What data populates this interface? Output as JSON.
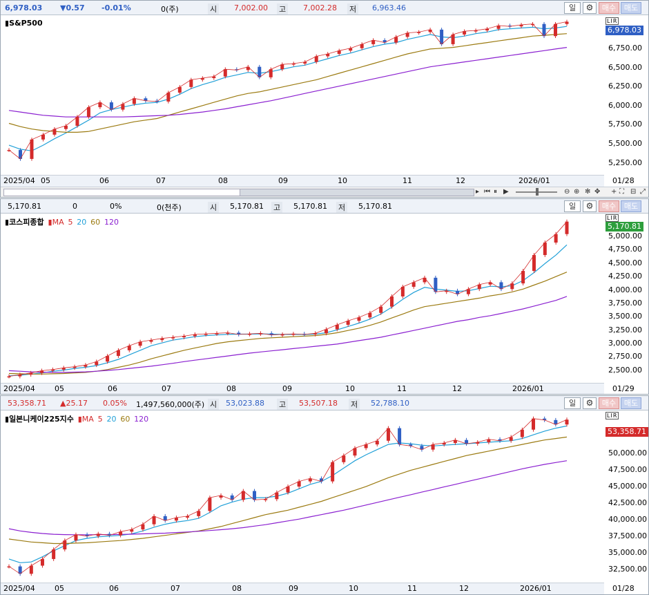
{
  "panels": [
    {
      "header": {
        "price": "6,978.03",
        "change": "▼0.57",
        "rate": "-0.01%",
        "volume": "0(주)",
        "open_label": "시",
        "open": "7,002.00",
        "high_label": "고",
        "high": "7,002.28",
        "low_label": "저",
        "low": "6,963.46"
      },
      "title": "S&P500",
      "ma_labels": [],
      "last_price": "6,978.03",
      "last_price_color": "#2f5fc4",
      "y_ticks": [
        "6,750.00",
        "6,500.00",
        "6,250.00",
        "6,000.00",
        "5,750.00",
        "5,500.00",
        "5,250.00"
      ],
      "x_ticks": [
        "2025/04",
        "05",
        "06",
        "07",
        "08",
        "09",
        "10",
        "11",
        "12",
        "2026/01"
      ],
      "end_date": "01/28",
      "buttons": {
        "period": "일",
        "buy": "매수",
        "sell": "매도"
      },
      "lr_badge": "LIR"
    },
    {
      "header": {
        "price": "5,170.81",
        "change": "0",
        "rate": "0%",
        "volume": "0(천주)",
        "open_label": "시",
        "open": "5,170.81",
        "high_label": "고",
        "high": "5,170.81",
        "low_label": "저",
        "low": "5,170.81"
      },
      "title": "코스피종합",
      "ma_labels": [
        "MA",
        "5",
        "20",
        "60",
        "120"
      ],
      "last_price": "5,170.81",
      "last_price_color": "#2d9e3c",
      "y_ticks": [
        "5,000.00",
        "4,750.00",
        "4,500.00",
        "4,250.00",
        "4,000.00",
        "3,750.00",
        "3,500.00",
        "3,250.00",
        "3,000.00",
        "2,750.00",
        "2,500.00"
      ],
      "x_ticks": [
        "2025/04",
        "05",
        "06",
        "07",
        "08",
        "09",
        "10",
        "11",
        "12",
        "2026/01"
      ],
      "end_date": "01/29",
      "buttons": {
        "period": "일",
        "buy": "매수",
        "sell": "매도"
      },
      "lr_badge": "LIR"
    },
    {
      "header": {
        "price": "53,358.71",
        "change": "▲25.17",
        "rate": "0.05%",
        "volume": "1,497,560,000(주)",
        "open_label": "시",
        "open": "53,023.88",
        "high_label": "고",
        "high": "53,507.18",
        "low_label": "저",
        "low": "52,788.10"
      },
      "title": "일본니케이225지수",
      "ma_labels": [
        "MA",
        "5",
        "20",
        "60",
        "120"
      ],
      "last_price": "53,358.71",
      "last_price_color": "#d42b2b",
      "y_ticks": [
        "50,000.00",
        "47,500.00",
        "45,000.00",
        "42,500.00",
        "40,000.00",
        "37,500.00",
        "35,000.00",
        "32,500.00"
      ],
      "x_ticks": [
        "2025/04",
        "05",
        "06",
        "07",
        "08",
        "09",
        "10",
        "11",
        "12",
        "2026/01"
      ],
      "end_date": "01/28",
      "buttons": {
        "period": "일",
        "buy": "매수",
        "sell": "매도"
      },
      "lr_badge": "LIR"
    }
  ],
  "colors": {
    "up": "#d42b2b",
    "down": "#2f5fc4",
    "ma5": "#d42b2b",
    "ma20": "#20a0d8",
    "ma60": "#9b7a10",
    "ma120": "#8a1fd0"
  },
  "chart_data": [
    {
      "type": "line",
      "title": "S&P500",
      "y_range": [
        5100,
        7050
      ],
      "series": [
        {
          "name": "close",
          "values": [
            5390,
            5280,
            5520,
            5580,
            5650,
            5690,
            5800,
            5920,
            5980,
            5890,
            5960,
            6030,
            6000,
            5990,
            6100,
            6170,
            6260,
            6280,
            6300,
            6390,
            6380,
            6420,
            6290,
            6390,
            6450,
            6460,
            6480,
            6550,
            6580,
            6620,
            6650,
            6700,
            6750,
            6720,
            6790,
            6840,
            6850,
            6880,
            6700,
            6820,
            6860,
            6870,
            6890,
            6930,
            6920,
            6940,
            6950,
            6800,
            6950,
            6978
          ]
        },
        {
          "name": "20",
          "values": [
            5450,
            5400,
            5380,
            5450,
            5530,
            5600,
            5680,
            5760,
            5850,
            5890,
            5920,
            5950,
            5970,
            5980,
            6020,
            6080,
            6150,
            6200,
            6240,
            6290,
            6320,
            6350,
            6340,
            6360,
            6390,
            6420,
            6440,
            6480,
            6520,
            6560,
            6590,
            6630,
            6670,
            6700,
            6720,
            6760,
            6790,
            6820,
            6790,
            6780,
            6800,
            6830,
            6850,
            6880,
            6890,
            6900,
            6910,
            6890,
            6900,
            6920
          ]
        },
        {
          "name": "60",
          "values": [
            5720,
            5680,
            5650,
            5630,
            5620,
            5610,
            5610,
            5620,
            5650,
            5680,
            5710,
            5740,
            5760,
            5780,
            5820,
            5860,
            5900,
            5940,
            5980,
            6020,
            6060,
            6090,
            6110,
            6140,
            6170,
            6200,
            6230,
            6260,
            6300,
            6340,
            6380,
            6420,
            6460,
            6500,
            6540,
            6580,
            6610,
            6640,
            6650,
            6660,
            6680,
            6700,
            6720,
            6740,
            6760,
            6780,
            6800,
            6810,
            6820,
            6830
          ]
        },
        {
          "name": "120",
          "values": [
            5880,
            5860,
            5840,
            5820,
            5810,
            5800,
            5800,
            5800,
            5800,
            5800,
            5800,
            5805,
            5810,
            5815,
            5820,
            5830,
            5845,
            5860,
            5880,
            5900,
            5925,
            5950,
            5975,
            6000,
            6030,
            6060,
            6090,
            6120,
            6150,
            6180,
            6210,
            6240,
            6270,
            6300,
            6330,
            6360,
            6390,
            6420,
            6440,
            6460,
            6480,
            6500,
            6520,
            6540,
            6560,
            6580,
            6600,
            6620,
            6640,
            6660
          ]
        }
      ]
    },
    {
      "type": "line",
      "title": "코스피종합",
      "y_range": [
        2350,
        5300
      ],
      "series": [
        {
          "name": "close",
          "values": [
            2440,
            2470,
            2500,
            2540,
            2560,
            2590,
            2610,
            2640,
            2700,
            2800,
            2900,
            2980,
            3050,
            3080,
            3110,
            3130,
            3150,
            3180,
            3190,
            3200,
            3210,
            3180,
            3190,
            3200,
            3170,
            3180,
            3190,
            3180,
            3200,
            3270,
            3350,
            3420,
            3480,
            3560,
            3670,
            3850,
            4020,
            4100,
            4180,
            3930,
            3950,
            3890,
            3980,
            4060,
            4100,
            3980,
            4080,
            4300,
            4580,
            4800,
            4950,
            5170
          ]
        },
        {
          "name": "20",
          "values": [
            2450,
            2460,
            2480,
            2500,
            2530,
            2550,
            2580,
            2600,
            2630,
            2680,
            2740,
            2820,
            2900,
            2980,
            3030,
            3080,
            3110,
            3140,
            3160,
            3170,
            3180,
            3185,
            3185,
            3190,
            3185,
            3180,
            3180,
            3180,
            3185,
            3210,
            3260,
            3320,
            3380,
            3450,
            3540,
            3660,
            3800,
            3920,
            4010,
            3980,
            3960,
            3940,
            3950,
            3990,
            4030,
            4020,
            4040,
            4130,
            4270,
            4430,
            4580,
            4760
          ]
        },
        {
          "name": "60",
          "values": [
            2490,
            2485,
            2480,
            2480,
            2485,
            2490,
            2500,
            2510,
            2530,
            2560,
            2600,
            2640,
            2690,
            2750,
            2800,
            2850,
            2900,
            2940,
            2980,
            3020,
            3050,
            3070,
            3090,
            3110,
            3120,
            3130,
            3140,
            3150,
            3160,
            3180,
            3210,
            3250,
            3290,
            3340,
            3400,
            3470,
            3540,
            3610,
            3670,
            3700,
            3730,
            3760,
            3790,
            3820,
            3860,
            3890,
            3930,
            3980,
            4050,
            4120,
            4200,
            4280
          ]
        },
        {
          "name": "120",
          "values": [
            2540,
            2530,
            2520,
            2515,
            2510,
            2510,
            2515,
            2520,
            2530,
            2545,
            2560,
            2580,
            2600,
            2620,
            2645,
            2670,
            2700,
            2725,
            2750,
            2775,
            2800,
            2825,
            2850,
            2870,
            2890,
            2910,
            2930,
            2950,
            2970,
            2990,
            3010,
            3040,
            3070,
            3100,
            3130,
            3170,
            3210,
            3250,
            3290,
            3330,
            3370,
            3410,
            3440,
            3480,
            3510,
            3550,
            3590,
            3630,
            3680,
            3730,
            3780,
            3850
          ]
        }
      ]
    },
    {
      "type": "line",
      "title": "일본니케이225지수",
      "y_range": [
        31500,
        54500
      ],
      "series": [
        {
          "name": "close",
          "values": [
            33500,
            32500,
            33600,
            34500,
            35800,
            37000,
            37800,
            37600,
            37900,
            37700,
            38200,
            38500,
            39200,
            40300,
            39700,
            40100,
            40300,
            41000,
            42800,
            43100,
            42500,
            43700,
            42500,
            42600,
            43500,
            44300,
            45000,
            45400,
            45000,
            47600,
            48500,
            49500,
            50000,
            50500,
            52200,
            50000,
            49800,
            49300,
            50000,
            50200,
            50600,
            50100,
            50300,
            50700,
            50500,
            51000,
            52000,
            53500,
            53300,
            52700,
            53358
          ]
        },
        {
          "name": "20",
          "values": [
            34500,
            34000,
            34100,
            34800,
            35600,
            36300,
            37000,
            37300,
            37500,
            37600,
            37700,
            37900,
            38300,
            38800,
            39200,
            39500,
            39700,
            40000,
            40800,
            41700,
            42200,
            42600,
            42800,
            42800,
            43000,
            43400,
            44000,
            44600,
            45000,
            45800,
            46800,
            47800,
            48600,
            49300,
            50000,
            50200,
            50100,
            49900,
            49800,
            49900,
            50000,
            50100,
            50200,
            50300,
            50400,
            50500,
            50800,
            51300,
            51800,
            52200,
            52500
          ]
        },
        {
          "name": "60",
          "values": [
            37200,
            37000,
            36800,
            36700,
            36600,
            36600,
            36650,
            36700,
            36800,
            36900,
            37000,
            37150,
            37300,
            37500,
            37700,
            37900,
            38100,
            38300,
            38600,
            38900,
            39300,
            39700,
            40100,
            40500,
            40800,
            41100,
            41500,
            41900,
            42300,
            42800,
            43300,
            43800,
            44300,
            44900,
            45500,
            46000,
            46500,
            46900,
            47300,
            47700,
            48100,
            48500,
            48800,
            49100,
            49400,
            49700,
            50000,
            50300,
            50600,
            50800,
            51000
          ]
        },
        {
          "name": "120",
          "values": [
            38600,
            38300,
            38100,
            37950,
            37850,
            37800,
            37780,
            37780,
            37790,
            37800,
            37830,
            37860,
            37900,
            37950,
            38000,
            38080,
            38160,
            38250,
            38350,
            38470,
            38600,
            38750,
            38950,
            39150,
            39400,
            39650,
            39900,
            40200,
            40500,
            40800,
            41100,
            41450,
            41800,
            42150,
            42500,
            42850,
            43200,
            43550,
            43900,
            44250,
            44600,
            44950,
            45300,
            45650,
            46000,
            46350,
            46700,
            47000,
            47300,
            47550,
            47800
          ]
        }
      ]
    }
  ]
}
